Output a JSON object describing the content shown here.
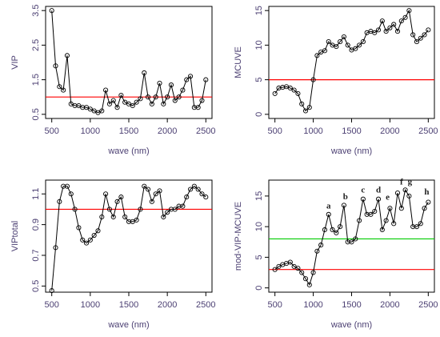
{
  "chart_data": [
    {
      "type": "line",
      "xlabel": "wave (nm)",
      "ylabel": "VIP",
      "color": "#000000",
      "x": [
        500,
        550,
        600,
        650,
        700,
        750,
        800,
        850,
        900,
        950,
        1000,
        1050,
        1100,
        1150,
        1200,
        1250,
        1300,
        1350,
        1400,
        1450,
        1500,
        1550,
        1600,
        1650,
        1700,
        1750,
        1800,
        1850,
        1900,
        1950,
        2000,
        2050,
        2100,
        2150,
        2200,
        2250,
        2300,
        2350,
        2400,
        2450,
        2500
      ],
      "values": [
        3.5,
        1.9,
        1.3,
        1.2,
        2.2,
        0.8,
        0.75,
        0.75,
        0.7,
        0.7,
        0.65,
        0.6,
        0.55,
        0.6,
        1.2,
        0.8,
        0.9,
        0.7,
        1.05,
        0.85,
        0.8,
        0.75,
        0.85,
        0.95,
        1.7,
        1.0,
        0.8,
        1.0,
        1.4,
        0.8,
        1.0,
        1.35,
        0.9,
        1.0,
        1.2,
        1.5,
        1.6,
        0.7,
        0.7,
        0.9,
        1.5
      ],
      "xlim": [
        420,
        2580
      ],
      "ylim": [
        0.38,
        3.62
      ],
      "xticks": [
        500,
        1000,
        1500,
        2000,
        2500
      ],
      "yticks": [
        0.5,
        1.5,
        2.5,
        3.5
      ],
      "hlines": [
        {
          "value": 1,
          "color": "#ff0000"
        }
      ]
    },
    {
      "type": "line",
      "xlabel": "wave (nm)",
      "ylabel": "MCUVE",
      "color": "#000000",
      "x": [
        500,
        550,
        600,
        650,
        700,
        750,
        800,
        850,
        900,
        950,
        1000,
        1050,
        1100,
        1150,
        1200,
        1250,
        1300,
        1350,
        1400,
        1450,
        1500,
        1550,
        1600,
        1650,
        1700,
        1750,
        1800,
        1850,
        1900,
        1950,
        2000,
        2050,
        2100,
        2150,
        2200,
        2250,
        2300,
        2350,
        2400,
        2450,
        2500
      ],
      "values": [
        3.0,
        3.8,
        3.9,
        4.0,
        3.8,
        3.5,
        3.0,
        1.5,
        0.5,
        1.0,
        5.0,
        8.5,
        9.0,
        9.2,
        10.5,
        10.0,
        9.8,
        10.5,
        11.2,
        10.0,
        9.3,
        9.5,
        10.0,
        10.5,
        11.8,
        12.0,
        11.8,
        12.2,
        13.5,
        12.0,
        12.5,
        13.0,
        12.0,
        13.5,
        14.0,
        15.0,
        11.5,
        10.5,
        11.0,
        11.5,
        12.2
      ],
      "xlim": [
        420,
        2580
      ],
      "ylim": [
        -0.6,
        15.6
      ],
      "xticks": [
        500,
        1000,
        1500,
        2000,
        2500
      ],
      "yticks": [
        0,
        5,
        10,
        15
      ],
      "hlines": [
        {
          "value": 5,
          "color": "#ff0000"
        }
      ]
    },
    {
      "type": "line",
      "xlabel": "wave (nm)",
      "ylabel": "VIPtotal",
      "color": "#000000",
      "x": [
        500,
        550,
        600,
        650,
        700,
        750,
        800,
        850,
        900,
        950,
        1000,
        1050,
        1100,
        1150,
        1200,
        1250,
        1300,
        1350,
        1400,
        1450,
        1500,
        1550,
        1600,
        1650,
        1700,
        1750,
        1800,
        1850,
        1900,
        1950,
        2000,
        2050,
        2100,
        2150,
        2200,
        2250,
        2300,
        2350,
        2400,
        2450,
        2500
      ],
      "values": [
        0.47,
        0.75,
        1.05,
        1.15,
        1.15,
        1.1,
        1.0,
        0.88,
        0.8,
        0.78,
        0.8,
        0.83,
        0.86,
        0.95,
        1.1,
        1.0,
        0.95,
        1.05,
        1.08,
        0.95,
        0.92,
        0.92,
        0.93,
        1.0,
        1.15,
        1.13,
        1.05,
        1.1,
        1.12,
        0.95,
        0.98,
        1.0,
        1.0,
        1.02,
        1.02,
        1.08,
        1.13,
        1.15,
        1.13,
        1.1,
        1.08
      ],
      "xlim": [
        420,
        2580
      ],
      "ylim": [
        0.46,
        1.19
      ],
      "xticks": [
        500,
        1000,
        1500,
        2000,
        2500
      ],
      "yticks": [
        0.5,
        0.7,
        0.9,
        1.1
      ],
      "hlines": [
        {
          "value": 1.0,
          "color": "#ff0000"
        }
      ]
    },
    {
      "type": "line",
      "xlabel": "wave (nm)",
      "ylabel": "mod-VIP-MCUVE",
      "color": "#000000",
      "x": [
        500,
        550,
        600,
        650,
        700,
        750,
        800,
        850,
        900,
        950,
        1000,
        1050,
        1100,
        1150,
        1200,
        1250,
        1300,
        1350,
        1400,
        1450,
        1500,
        1550,
        1600,
        1650,
        1700,
        1750,
        1800,
        1850,
        1900,
        1950,
        2000,
        2050,
        2100,
        2150,
        2200,
        2250,
        2300,
        2350,
        2400,
        2450,
        2500
      ],
      "values": [
        3.0,
        3.5,
        3.8,
        4.0,
        4.2,
        3.5,
        3.2,
        2.5,
        1.5,
        0.5,
        2.5,
        6.0,
        7.0,
        9.5,
        12.0,
        9.5,
        9.0,
        10.0,
        13.5,
        7.5,
        7.5,
        8.0,
        11.0,
        14.5,
        12.0,
        12.0,
        12.5,
        14.5,
        9.5,
        11.0,
        13.0,
        10.5,
        15.5,
        13.0,
        16.0,
        15.0,
        10.0,
        10.0,
        10.5,
        13.0,
        14.0
      ],
      "xlim": [
        420,
        2580
      ],
      "ylim": [
        -0.7,
        17.6
      ],
      "xticks": [
        500,
        1000,
        1500,
        2000,
        2500
      ],
      "yticks": [
        0,
        5,
        10,
        15
      ],
      "hlines": [
        {
          "value": 3,
          "color": "#ff0000"
        },
        {
          "value": 8,
          "color": "#00cc00"
        }
      ],
      "annotations": [
        {
          "text": "a",
          "x": 1200,
          "y": 13.3
        },
        {
          "text": "b",
          "x": 1420,
          "y": 14.8
        },
        {
          "text": "c",
          "x": 1650,
          "y": 15.9
        },
        {
          "text": "d",
          "x": 1850,
          "y": 15.9
        },
        {
          "text": "e",
          "x": 1970,
          "y": 14.7
        },
        {
          "text": "f",
          "x": 2150,
          "y": 17.2
        },
        {
          "text": "g",
          "x": 2260,
          "y": 17.3
        },
        {
          "text": "h",
          "x": 2480,
          "y": 15.6
        }
      ]
    }
  ]
}
